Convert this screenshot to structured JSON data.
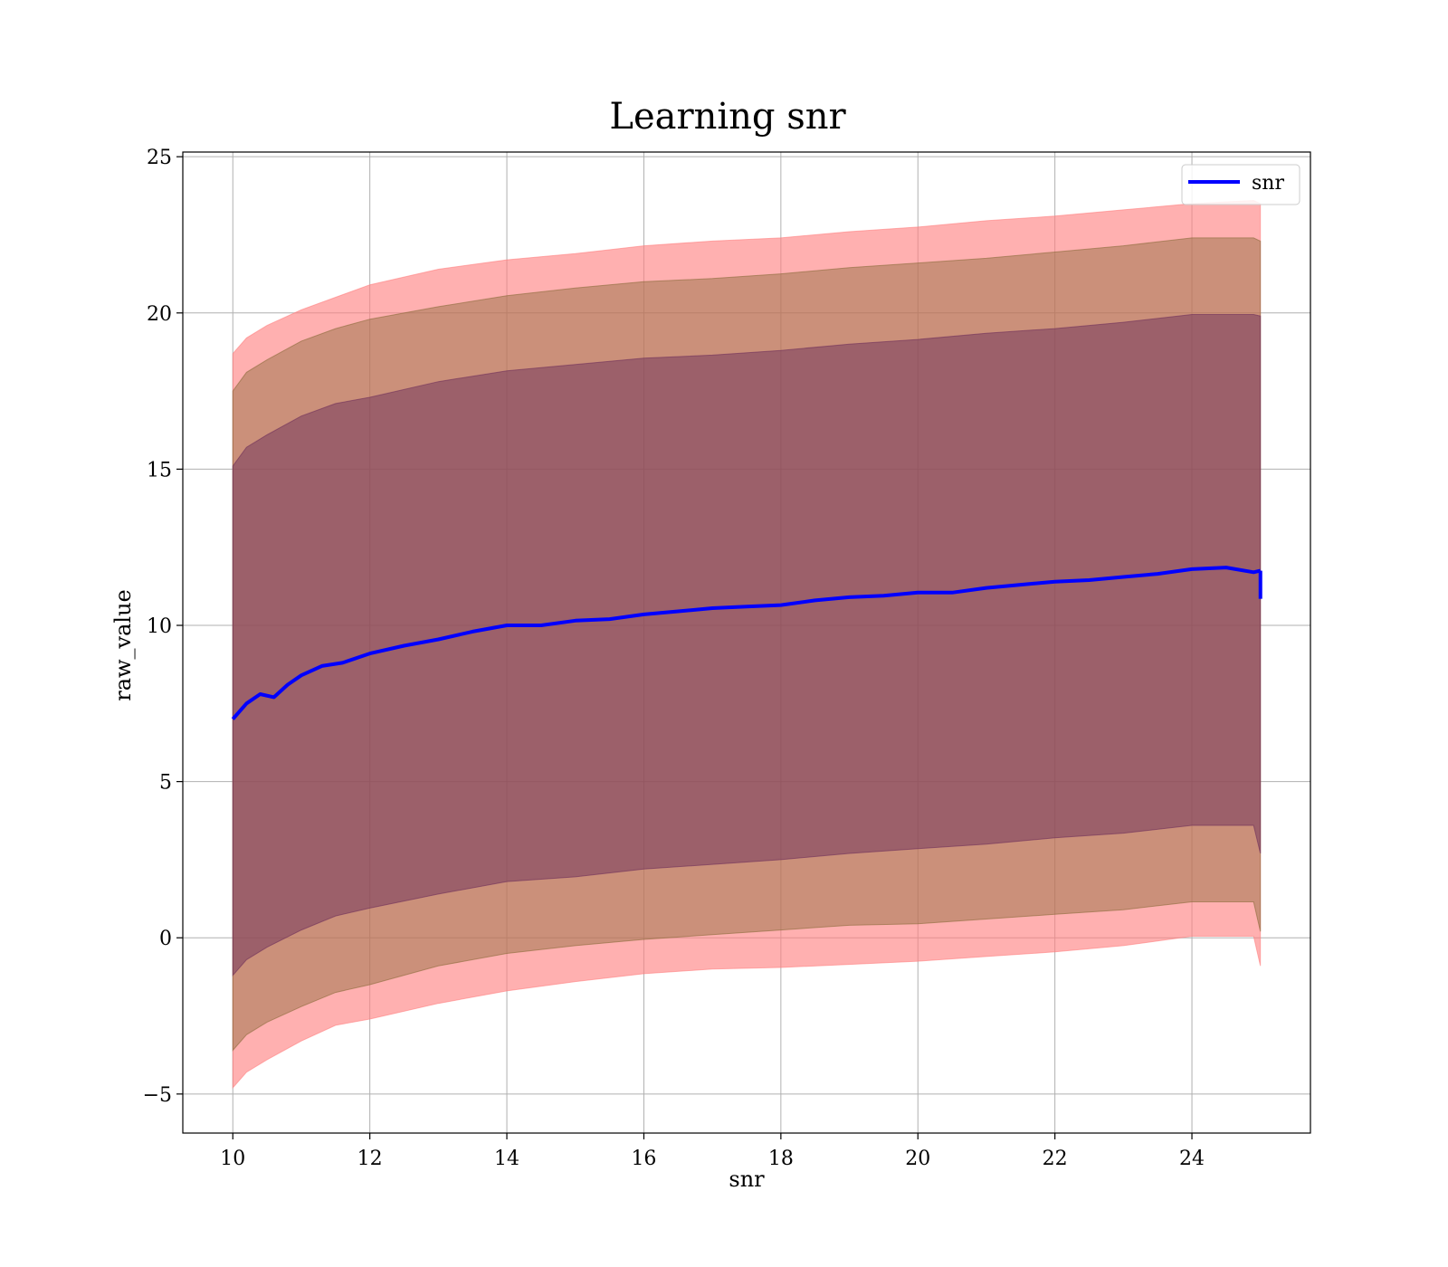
{
  "chart_data": {
    "type": "line",
    "title": "Learning snr",
    "xlabel": "snr",
    "ylabel": "raw_value",
    "xlim": [
      9.27,
      25.73
    ],
    "ylim": [
      -6.25,
      25.15
    ],
    "xticks": [
      10,
      12,
      14,
      16,
      18,
      20,
      22,
      24
    ],
    "yticks": [
      -5,
      0,
      5,
      10,
      15,
      20,
      25
    ],
    "ytick_labels": [
      "−5",
      "0",
      "5",
      "10",
      "15",
      "20",
      "25"
    ],
    "grid": true,
    "legend": {
      "position": "top-right",
      "entries": [
        "snr"
      ]
    },
    "colors": {
      "line": "#0000ff",
      "band_outer": "#ff7f7f",
      "band_middle": "#8b6b3a",
      "band_inner": "#6e2f5a"
    },
    "series": [
      {
        "name": "snr",
        "x": [
          10.0,
          10.2,
          10.4,
          10.6,
          10.8,
          11.0,
          11.3,
          11.6,
          12.0,
          12.5,
          13.0,
          13.5,
          14.0,
          14.5,
          15.0,
          15.5,
          16.0,
          16.5,
          17.0,
          17.5,
          18.0,
          18.5,
          19.0,
          19.5,
          20.0,
          20.5,
          21.0,
          21.5,
          22.0,
          22.5,
          23.0,
          23.5,
          24.0,
          24.5,
          24.9,
          25.0
        ],
        "y": [
          7.0,
          7.5,
          7.8,
          7.7,
          8.1,
          8.4,
          8.7,
          8.8,
          9.1,
          9.35,
          9.55,
          9.8,
          10.0,
          10.0,
          10.15,
          10.2,
          10.35,
          10.45,
          10.55,
          10.6,
          10.65,
          10.8,
          10.9,
          10.95,
          11.05,
          11.05,
          11.2,
          11.3,
          11.4,
          11.45,
          11.55,
          11.65,
          11.8,
          11.85,
          11.7,
          11.75
        ]
      }
    ],
    "bands": [
      {
        "role": "outer",
        "x": [
          10.0,
          10.2,
          10.5,
          11.0,
          11.5,
          12.0,
          13.0,
          14.0,
          15.0,
          16.0,
          17.0,
          18.0,
          19.0,
          20.0,
          21.0,
          22.0,
          23.0,
          24.0,
          24.9,
          25.0
        ],
        "lower": [
          -4.8,
          -4.3,
          -3.9,
          -3.3,
          -2.8,
          -2.6,
          -2.1,
          -1.7,
          -1.4,
          -1.15,
          -1.0,
          -0.95,
          -0.85,
          -0.75,
          -0.6,
          -0.45,
          -0.25,
          0.05,
          0.05,
          -0.9
        ],
        "upper": [
          18.7,
          19.2,
          19.6,
          20.1,
          20.5,
          20.9,
          21.4,
          21.7,
          21.9,
          22.15,
          22.3,
          22.4,
          22.6,
          22.75,
          22.95,
          23.1,
          23.3,
          23.5,
          23.6,
          23.5
        ]
      },
      {
        "role": "middle",
        "x": [
          10.0,
          10.2,
          10.5,
          11.0,
          11.5,
          12.0,
          13.0,
          14.0,
          15.0,
          16.0,
          17.0,
          18.0,
          19.0,
          20.0,
          21.0,
          22.0,
          23.0,
          24.0,
          24.9,
          25.0
        ],
        "lower": [
          -3.6,
          -3.1,
          -2.7,
          -2.2,
          -1.75,
          -1.5,
          -0.9,
          -0.5,
          -0.25,
          -0.05,
          0.1,
          0.25,
          0.4,
          0.45,
          0.6,
          0.75,
          0.9,
          1.15,
          1.15,
          0.2
        ],
        "upper": [
          17.5,
          18.1,
          18.5,
          19.1,
          19.5,
          19.8,
          20.2,
          20.55,
          20.8,
          21.0,
          21.1,
          21.25,
          21.45,
          21.6,
          21.75,
          21.95,
          22.15,
          22.4,
          22.4,
          22.3
        ]
      },
      {
        "role": "inner",
        "x": [
          10.0,
          10.2,
          10.5,
          11.0,
          11.5,
          12.0,
          13.0,
          14.0,
          15.0,
          16.0,
          17.0,
          18.0,
          19.0,
          20.0,
          21.0,
          22.0,
          23.0,
          24.0,
          24.9,
          25.0
        ],
        "lower": [
          -1.2,
          -0.7,
          -0.3,
          0.25,
          0.7,
          0.95,
          1.4,
          1.8,
          1.95,
          2.2,
          2.35,
          2.5,
          2.7,
          2.85,
          3.0,
          3.2,
          3.35,
          3.6,
          3.6,
          2.7
        ],
        "upper": [
          15.1,
          15.7,
          16.1,
          16.7,
          17.1,
          17.3,
          17.8,
          18.15,
          18.35,
          18.55,
          18.65,
          18.8,
          19.0,
          19.15,
          19.35,
          19.5,
          19.7,
          19.95,
          19.95,
          19.9
        ]
      }
    ]
  }
}
